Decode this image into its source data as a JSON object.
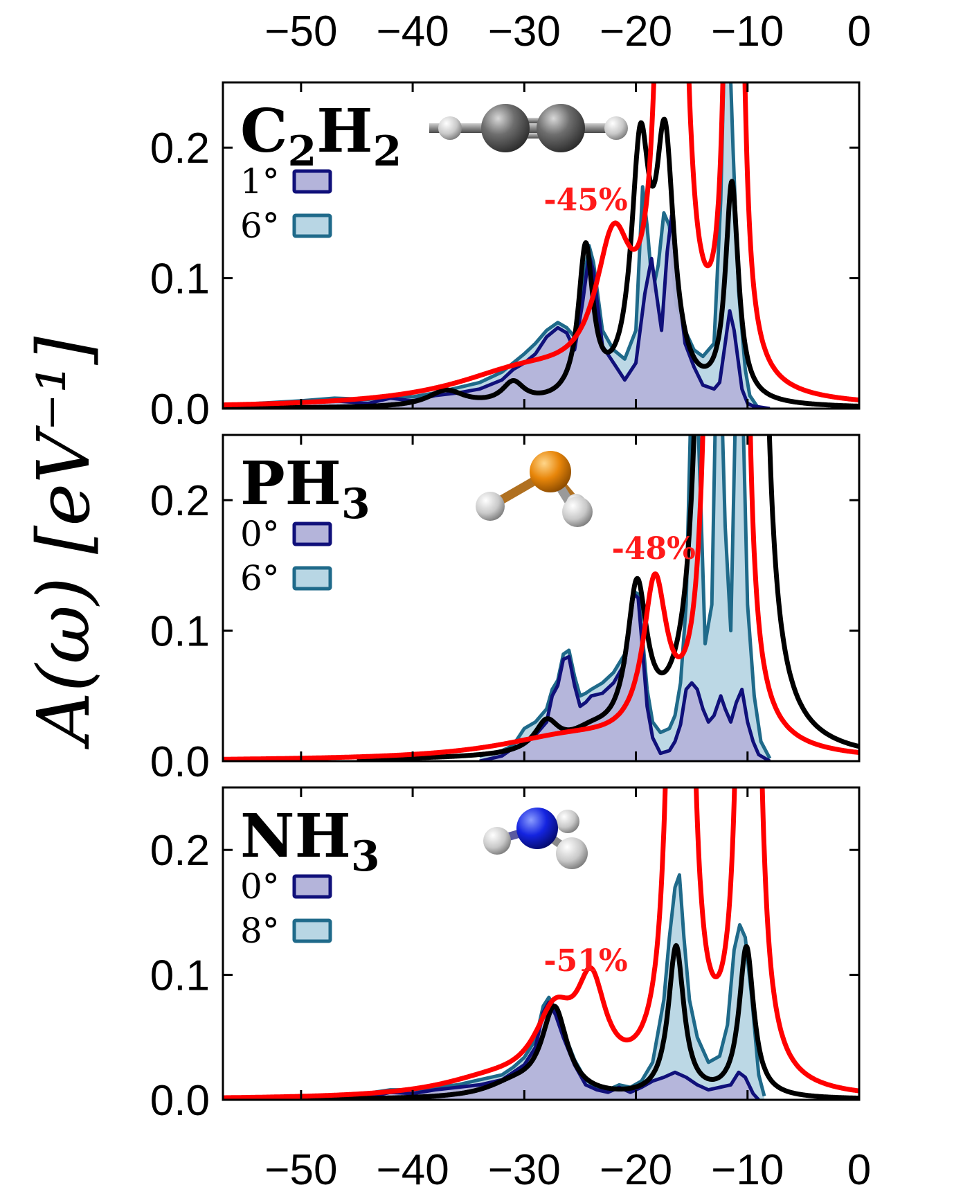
{
  "chart_data": {
    "type": "line",
    "ylabel": "A(ω) [eV⁻¹]",
    "xlim": [
      -57,
      0
    ],
    "ylim": [
      0,
      0.25
    ],
    "x_tick_labels": [
      "−50",
      "−40",
      "−30",
      "−20",
      "−10",
      "0"
    ],
    "x_ticks": [
      -50,
      -40,
      -30,
      -20,
      -10,
      0
    ],
    "y_tick_labels": [
      "0.0",
      "0.1",
      "0.2"
    ],
    "y_ticks": [
      0,
      0.1,
      0.2
    ],
    "colors": {
      "black_curve": "#000000",
      "red_curve": "#ff0000",
      "fill_small_angle": "#b4b4da",
      "edge_small_angle": "#10107a",
      "fill_large_angle": "#b8d6e4",
      "edge_large_angle": "#1f6a8a",
      "annotation": "#ff1a1a"
    },
    "panels": [
      {
        "molecule": "C",
        "sub1": "2",
        "molecule2": "H",
        "sub2": "2",
        "legend": [
          {
            "label": "1°",
            "series": "small_angle"
          },
          {
            "label": "6°",
            "series": "large_angle"
          }
        ],
        "annotation": "-45%",
        "annotation_at": [
          -24.5,
          0.152
        ],
        "black_peaks": [
          [
            -26,
            0.0,
            1.0
          ],
          [
            -31,
            0.016,
            1.2
          ],
          [
            -37,
            0.012,
            2.0
          ],
          [
            -24.5,
            0.115,
            0.8
          ],
          [
            -19.6,
            0.182,
            1.0
          ],
          [
            -17.4,
            0.186,
            1.0
          ],
          [
            -11.4,
            0.166,
            0.7
          ]
        ],
        "red_peaks": [
          [
            -30,
            0.025,
            8.0
          ],
          [
            -22,
            0.105,
            2.0
          ],
          [
            -16.8,
            2.0,
            0.55
          ],
          [
            -11.2,
            2.0,
            0.35
          ]
        ],
        "small_points": [
          [
            -54,
            0.0
          ],
          [
            -50,
            0.005
          ],
          [
            -47,
            0.006
          ],
          [
            -44,
            0.004
          ],
          [
            -42,
            0.008
          ],
          [
            -40,
            0.006
          ],
          [
            -38,
            0.01
          ],
          [
            -36,
            0.012
          ],
          [
            -34,
            0.015
          ],
          [
            -32,
            0.022
          ],
          [
            -31,
            0.03
          ],
          [
            -30,
            0.035
          ],
          [
            -29,
            0.042
          ],
          [
            -28,
            0.055
          ],
          [
            -27,
            0.062
          ],
          [
            -26.2,
            0.058
          ],
          [
            -25.5,
            0.045
          ],
          [
            -24.8,
            0.08
          ],
          [
            -24.2,
            0.118
          ],
          [
            -23.8,
            0.105
          ],
          [
            -23.0,
            0.048
          ],
          [
            -22.0,
            0.035
          ],
          [
            -21.0,
            0.022
          ],
          [
            -20.0,
            0.035
          ],
          [
            -19.2,
            0.088
          ],
          [
            -18.6,
            0.115
          ],
          [
            -18.2,
            0.09
          ],
          [
            -17.7,
            0.06
          ],
          [
            -17.2,
            0.12
          ],
          [
            -16.8,
            0.148
          ],
          [
            -16.3,
            0.1
          ],
          [
            -15.6,
            0.05
          ],
          [
            -14.8,
            0.032
          ],
          [
            -14.0,
            0.018
          ],
          [
            -13.0,
            0.015
          ],
          [
            -12.5,
            0.02
          ],
          [
            -12.0,
            0.05
          ],
          [
            -11.6,
            0.075
          ],
          [
            -11.2,
            0.06
          ],
          [
            -10.5,
            0.015
          ],
          [
            -10.0,
            0.004
          ],
          [
            -9.5,
            0.002
          ],
          [
            -8,
            0.0
          ]
        ],
        "large_points": [
          [
            -54,
            0.004
          ],
          [
            -50,
            0.006
          ],
          [
            -47,
            0.008
          ],
          [
            -44,
            0.007
          ],
          [
            -42,
            0.01
          ],
          [
            -40,
            0.009
          ],
          [
            -38,
            0.012
          ],
          [
            -36,
            0.016
          ],
          [
            -34,
            0.02
          ],
          [
            -32,
            0.028
          ],
          [
            -31,
            0.035
          ],
          [
            -30,
            0.042
          ],
          [
            -29,
            0.05
          ],
          [
            -28,
            0.06
          ],
          [
            -27,
            0.066
          ],
          [
            -26.2,
            0.062
          ],
          [
            -25.5,
            0.055
          ],
          [
            -24.8,
            0.09
          ],
          [
            -24.2,
            0.125
          ],
          [
            -23.8,
            0.112
          ],
          [
            -23.0,
            0.06
          ],
          [
            -22.0,
            0.045
          ],
          [
            -21.0,
            0.038
          ],
          [
            -20.0,
            0.06
          ],
          [
            -19.4,
            0.17
          ],
          [
            -19.0,
            0.14
          ],
          [
            -18.5,
            0.09
          ],
          [
            -18.0,
            0.11
          ],
          [
            -17.5,
            0.15
          ],
          [
            -17.0,
            0.14
          ],
          [
            -16.4,
            0.08
          ],
          [
            -15.6,
            0.06
          ],
          [
            -14.8,
            0.045
          ],
          [
            -14.0,
            0.04
          ],
          [
            -13.0,
            0.05
          ],
          [
            -12.4,
            0.16
          ],
          [
            -12.0,
            0.3
          ],
          [
            -11.7,
            0.3
          ],
          [
            -11.3,
            0.2
          ],
          [
            -10.8,
            0.09
          ],
          [
            -10.2,
            0.03
          ],
          [
            -9.8,
            0.01
          ],
          [
            -9.0,
            0.0
          ]
        ]
      },
      {
        "molecule": "PH",
        "sub1": "3",
        "molecule2": "",
        "sub2": "",
        "legend": [
          {
            "label": "0°",
            "series": "small_angle"
          },
          {
            "label": "6°",
            "series": "large_angle"
          }
        ],
        "annotation": "-48%",
        "annotation_at": [
          -18.4,
          0.155
        ],
        "black_peaks": [
          [
            -28,
            0.022,
            1.3
          ],
          [
            -24,
            0.012,
            2.5
          ],
          [
            -19.9,
            0.115,
            1.1
          ],
          [
            -13.1,
            2.0,
            0.6
          ],
          [
            -9.6,
            2.0,
            0.55
          ]
        ],
        "red_peaks": [
          [
            -26,
            0.016,
            8.0
          ],
          [
            -18.3,
            0.118,
            1.3
          ],
          [
            -12.7,
            2.0,
            0.45
          ],
          [
            -10.8,
            2.0,
            0.35
          ]
        ],
        "small_points": [
          [
            -34,
            0.0
          ],
          [
            -32,
            0.004
          ],
          [
            -31,
            0.01
          ],
          [
            -30,
            0.014
          ],
          [
            -29,
            0.02
          ],
          [
            -28,
            0.03
          ],
          [
            -27.5,
            0.05
          ],
          [
            -27,
            0.058
          ],
          [
            -26.5,
            0.078
          ],
          [
            -26.0,
            0.08
          ],
          [
            -25.5,
            0.058
          ],
          [
            -25.0,
            0.042
          ],
          [
            -24.5,
            0.045
          ],
          [
            -24.0,
            0.05
          ],
          [
            -23.0,
            0.052
          ],
          [
            -22.0,
            0.06
          ],
          [
            -21.0,
            0.075
          ],
          [
            -20.2,
            0.128
          ],
          [
            -19.8,
            0.125
          ],
          [
            -19.4,
            0.085
          ],
          [
            -19.0,
            0.042
          ],
          [
            -18.5,
            0.018
          ],
          [
            -17.8,
            0.006
          ],
          [
            -17.0,
            0.008
          ],
          [
            -16.5,
            0.015
          ],
          [
            -16.0,
            0.028
          ],
          [
            -15.5,
            0.055
          ],
          [
            -15.0,
            0.06
          ],
          [
            -14.5,
            0.055
          ],
          [
            -14.0,
            0.04
          ],
          [
            -13.5,
            0.03
          ],
          [
            -13.0,
            0.035
          ],
          [
            -12.4,
            0.05
          ],
          [
            -12.0,
            0.04
          ],
          [
            -11.5,
            0.03
          ],
          [
            -11.0,
            0.045
          ],
          [
            -10.5,
            0.055
          ],
          [
            -10.0,
            0.03
          ],
          [
            -9.5,
            0.015
          ],
          [
            -9.0,
            0.005
          ],
          [
            -8.0,
            0.0
          ]
        ],
        "large_points": [
          [
            -34,
            0.004
          ],
          [
            -32,
            0.008
          ],
          [
            -31,
            0.012
          ],
          [
            -30,
            0.025
          ],
          [
            -29,
            0.03
          ],
          [
            -28,
            0.04
          ],
          [
            -27.5,
            0.055
          ],
          [
            -27,
            0.062
          ],
          [
            -26.5,
            0.082
          ],
          [
            -26.0,
            0.085
          ],
          [
            -25.5,
            0.065
          ],
          [
            -25.0,
            0.05
          ],
          [
            -24.5,
            0.052
          ],
          [
            -24.0,
            0.055
          ],
          [
            -23.0,
            0.06
          ],
          [
            -22.0,
            0.068
          ],
          [
            -21.0,
            0.082
          ],
          [
            -20.2,
            0.13
          ],
          [
            -19.8,
            0.128
          ],
          [
            -19.4,
            0.095
          ],
          [
            -19.0,
            0.055
          ],
          [
            -18.5,
            0.03
          ],
          [
            -17.8,
            0.022
          ],
          [
            -17.0,
            0.025
          ],
          [
            -16.5,
            0.035
          ],
          [
            -16.0,
            0.06
          ],
          [
            -15.5,
            0.12
          ],
          [
            -15.0,
            0.3
          ],
          [
            -14.6,
            0.3
          ],
          [
            -14.2,
            0.2
          ],
          [
            -13.8,
            0.09
          ],
          [
            -13.2,
            0.12
          ],
          [
            -12.8,
            0.3
          ],
          [
            -12.4,
            0.3
          ],
          [
            -12.0,
            0.18
          ],
          [
            -11.5,
            0.1
          ],
          [
            -11.0,
            0.3
          ],
          [
            -10.5,
            0.3
          ],
          [
            -10.0,
            0.12
          ],
          [
            -9.4,
            0.05
          ],
          [
            -8.8,
            0.015
          ],
          [
            -8.0,
            0.002
          ]
        ]
      },
      {
        "molecule": "NH",
        "sub1": "3",
        "molecule2": "",
        "sub2": "",
        "legend": [
          {
            "label": "0°",
            "series": "small_angle"
          },
          {
            "label": "8°",
            "series": "large_angle"
          }
        ],
        "annotation": "-51%",
        "annotation_at": [
          -24.5,
          0.103
        ],
        "black_peaks": [
          [
            -27.3,
            0.07,
            1.4
          ],
          [
            -31,
            0.01,
            3.0
          ],
          [
            -16.4,
            0.12,
            0.85
          ],
          [
            -10.1,
            0.12,
            0.8
          ]
        ],
        "red_peaks": [
          [
            -27.3,
            0.055,
            2.2
          ],
          [
            -24,
            0.075,
            1.6
          ],
          [
            -33,
            0.012,
            6.0
          ],
          [
            -16,
            2.0,
            0.5
          ],
          [
            -9.9,
            2.0,
            0.45
          ]
        ],
        "small_points": [
          [
            -45,
            0.0
          ],
          [
            -42,
            0.006
          ],
          [
            -40,
            0.005
          ],
          [
            -38,
            0.008
          ],
          [
            -36,
            0.01
          ],
          [
            -34,
            0.012
          ],
          [
            -32,
            0.016
          ],
          [
            -31,
            0.022
          ],
          [
            -30,
            0.028
          ],
          [
            -29,
            0.042
          ],
          [
            -28.3,
            0.07
          ],
          [
            -27.8,
            0.078
          ],
          [
            -27.2,
            0.068
          ],
          [
            -26.5,
            0.05
          ],
          [
            -25.5,
            0.028
          ],
          [
            -24.5,
            0.012
          ],
          [
            -23.5,
            0.008
          ],
          [
            -22.5,
            0.006
          ],
          [
            -21.5,
            0.01
          ],
          [
            -20.5,
            0.006
          ],
          [
            -19.5,
            0.01
          ],
          [
            -18.5,
            0.015
          ],
          [
            -17.5,
            0.018
          ],
          [
            -16.5,
            0.022
          ],
          [
            -15.5,
            0.018
          ],
          [
            -14.5,
            0.012
          ],
          [
            -13.5,
            0.008
          ],
          [
            -12.5,
            0.01
          ],
          [
            -11.5,
            0.012
          ],
          [
            -10.8,
            0.022
          ],
          [
            -10.2,
            0.018
          ],
          [
            -9.5,
            0.005
          ],
          [
            -9.0,
            0.0
          ]
        ],
        "large_points": [
          [
            -45,
            0.004
          ],
          [
            -42,
            0.008
          ],
          [
            -40,
            0.008
          ],
          [
            -38,
            0.01
          ],
          [
            -36,
            0.012
          ],
          [
            -34,
            0.016
          ],
          [
            -32,
            0.02
          ],
          [
            -31,
            0.026
          ],
          [
            -30,
            0.034
          ],
          [
            -29,
            0.048
          ],
          [
            -28.3,
            0.075
          ],
          [
            -27.8,
            0.082
          ],
          [
            -27.2,
            0.072
          ],
          [
            -26.5,
            0.055
          ],
          [
            -25.5,
            0.032
          ],
          [
            -24.5,
            0.016
          ],
          [
            -23.5,
            0.01
          ],
          [
            -22.5,
            0.008
          ],
          [
            -21.5,
            0.012
          ],
          [
            -20.5,
            0.01
          ],
          [
            -19.5,
            0.015
          ],
          [
            -18.5,
            0.03
          ],
          [
            -17.5,
            0.08
          ],
          [
            -17.0,
            0.13
          ],
          [
            -16.5,
            0.17
          ],
          [
            -16.1,
            0.18
          ],
          [
            -15.7,
            0.13
          ],
          [
            -15.2,
            0.08
          ],
          [
            -14.5,
            0.05
          ],
          [
            -13.5,
            0.03
          ],
          [
            -12.5,
            0.035
          ],
          [
            -11.8,
            0.06
          ],
          [
            -11.2,
            0.12
          ],
          [
            -10.7,
            0.14
          ],
          [
            -10.2,
            0.13
          ],
          [
            -9.6,
            0.08
          ],
          [
            -9.0,
            0.02
          ],
          [
            -8.5,
            0.003
          ]
        ]
      }
    ]
  }
}
